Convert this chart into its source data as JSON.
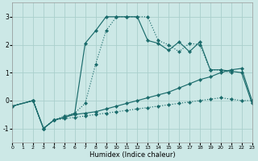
{
  "xlabel": "Humidex (Indice chaleur)",
  "background_color": "#cce8e6",
  "grid_color": "#aacfcc",
  "line_color": "#1a6b6b",
  "xlim": [
    0,
    23
  ],
  "ylim": [
    -1.5,
    3.5
  ],
  "yticks": [
    -1,
    0,
    1,
    2,
    3
  ],
  "xticks": [
    0,
    1,
    2,
    3,
    4,
    5,
    6,
    7,
    8,
    9,
    10,
    11,
    12,
    13,
    14,
    15,
    16,
    17,
    18,
    19,
    20,
    21,
    22,
    23
  ],
  "series": [
    {
      "x": [
        0,
        2,
        3,
        4,
        5,
        6,
        7,
        8,
        9,
        10,
        11,
        12,
        13,
        14,
        15,
        16,
        17,
        18,
        19,
        20,
        21
      ],
      "y": [
        -0.2,
        0.0,
        -1.0,
        -0.7,
        -0.55,
        -0.45,
        -0.1,
        1.3,
        2.5,
        3.0,
        3.0,
        3.0,
        3.0,
        2.15,
        2.0,
        1.75,
        2.05,
        2.0,
        1.1,
        1.1,
        1.0
      ],
      "linestyle": ":"
    },
    {
      "x": [
        0,
        2,
        3,
        4,
        5,
        6,
        7,
        8,
        9,
        10,
        11,
        12,
        13,
        14,
        15,
        16,
        17,
        18,
        19,
        20,
        21,
        22,
        23
      ],
      "y": [
        -0.2,
        0.0,
        -1.0,
        -0.7,
        -0.6,
        -0.45,
        2.05,
        2.5,
        3.0,
        3.0,
        3.0,
        3.0,
        2.15,
        2.05,
        1.8,
        2.1,
        1.75,
        2.1,
        1.1,
        1.1,
        1.05,
        1.0,
        -0.1
      ],
      "linestyle": "-"
    },
    {
      "x": [
        0,
        2,
        3,
        4,
        5,
        6,
        7,
        8,
        9,
        10,
        11,
        12,
        13,
        14,
        15,
        16,
        17,
        18,
        19,
        20,
        21,
        22,
        23
      ],
      "y": [
        -0.2,
        0.0,
        -1.0,
        -0.7,
        -0.6,
        -0.5,
        -0.45,
        -0.4,
        -0.3,
        -0.2,
        -0.1,
        0.0,
        0.1,
        0.2,
        0.3,
        0.45,
        0.6,
        0.75,
        0.85,
        1.0,
        1.1,
        1.15,
        0.0
      ],
      "linestyle": "-"
    },
    {
      "x": [
        0,
        2,
        3,
        4,
        5,
        6,
        7,
        8,
        9,
        10,
        11,
        12,
        13,
        14,
        15,
        16,
        17,
        18,
        19,
        20,
        21,
        22,
        23
      ],
      "y": [
        -0.2,
        0.0,
        -1.0,
        -0.7,
        -0.65,
        -0.6,
        -0.55,
        -0.5,
        -0.45,
        -0.4,
        -0.35,
        -0.3,
        -0.25,
        -0.2,
        -0.15,
        -0.1,
        -0.05,
        0.0,
        0.05,
        0.1,
        0.05,
        0.0,
        0.0
      ],
      "linestyle": ":"
    }
  ]
}
